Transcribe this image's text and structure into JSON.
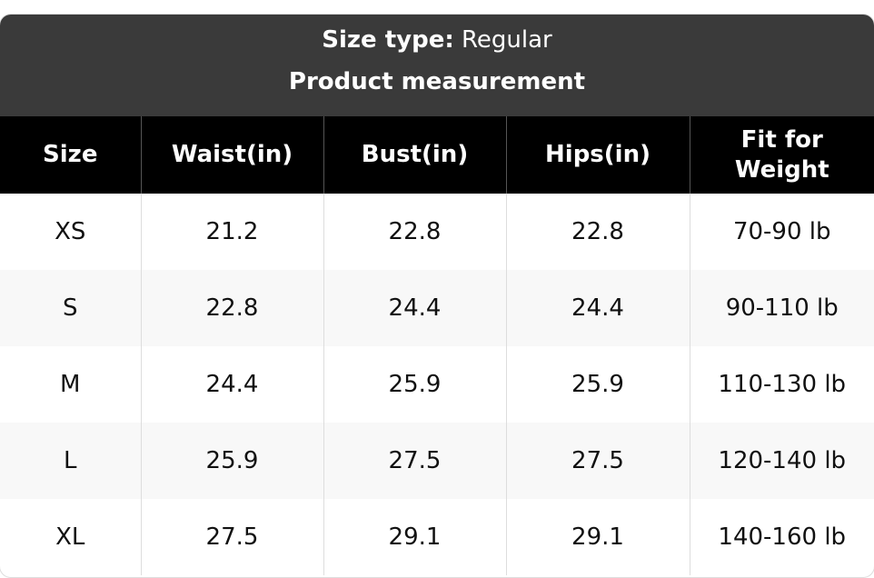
{
  "header": {
    "size_type_label": "Size type:",
    "size_type_value": "Regular",
    "title": "Product measurement"
  },
  "table": {
    "columns": [
      "Size",
      "Waist(in)",
      "Bust(in)",
      "Hips(in)",
      "Fit for Weight"
    ],
    "rows": [
      [
        "XS",
        "21.2",
        "22.8",
        "22.8",
        "70-90 lb"
      ],
      [
        "S",
        "22.8",
        "24.4",
        "24.4",
        "90-110 lb"
      ],
      [
        "M",
        "24.4",
        "25.9",
        "25.9",
        "110-130 lb"
      ],
      [
        "L",
        "25.9",
        "27.5",
        "27.5",
        "120-140 lb"
      ],
      [
        "XL",
        "27.5",
        "29.1",
        "29.1",
        "140-160 lb"
      ]
    ]
  }
}
